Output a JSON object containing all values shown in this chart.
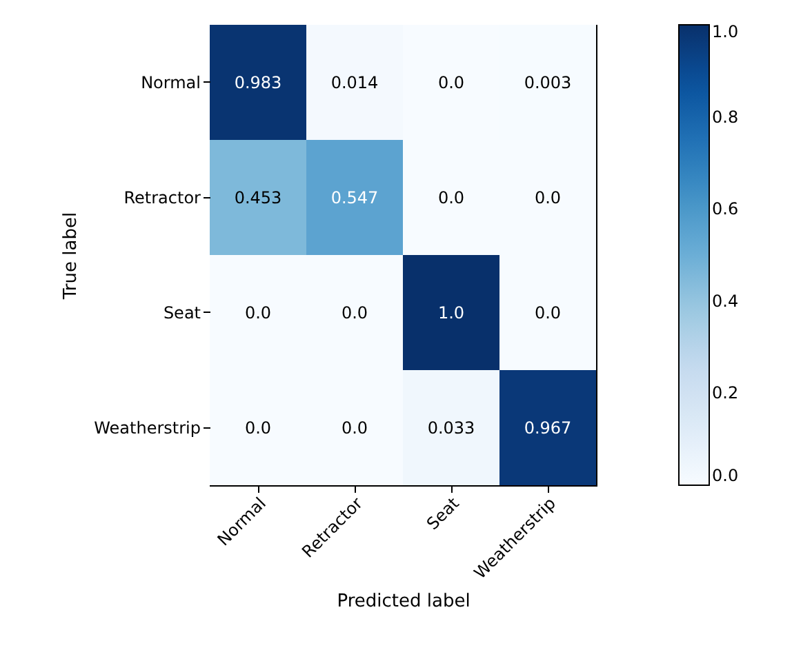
{
  "chart_data": {
    "type": "heatmap",
    "xlabel": "Predicted label",
    "ylabel": "True label",
    "categories": [
      "Normal",
      "Retractor",
      "Seat",
      "Weatherstrip"
    ],
    "y_categories": [
      "Normal",
      "Retractor",
      "Seat",
      "Weatherstrip"
    ],
    "cells": [
      [
        0.983,
        0.014,
        0,
        0.003
      ],
      [
        0.453,
        0.547,
        0,
        0
      ],
      [
        0,
        0,
        1,
        0
      ],
      [
        0,
        0,
        0.033,
        0.967
      ]
    ],
    "cell_labels": [
      [
        "0.983",
        "0.014",
        "0.0",
        "0.003"
      ],
      [
        "0.453",
        "0.547",
        "0.0",
        "0.0"
      ],
      [
        "0.0",
        "0.0",
        "1.0",
        "0.0"
      ],
      [
        "0.0",
        "0.0",
        "0.033",
        "0.967"
      ]
    ],
    "clim": [
      0,
      1
    ],
    "cticks": [
      {
        "value": 0,
        "label": "0.0"
      },
      {
        "value": 0.2,
        "label": "0.2"
      },
      {
        "value": 0.4,
        "label": "0.4"
      },
      {
        "value": 0.6,
        "label": "0.6"
      },
      {
        "value": 0.8,
        "label": "0.8"
      },
      {
        "value": 1,
        "label": "1.0"
      }
    ]
  }
}
